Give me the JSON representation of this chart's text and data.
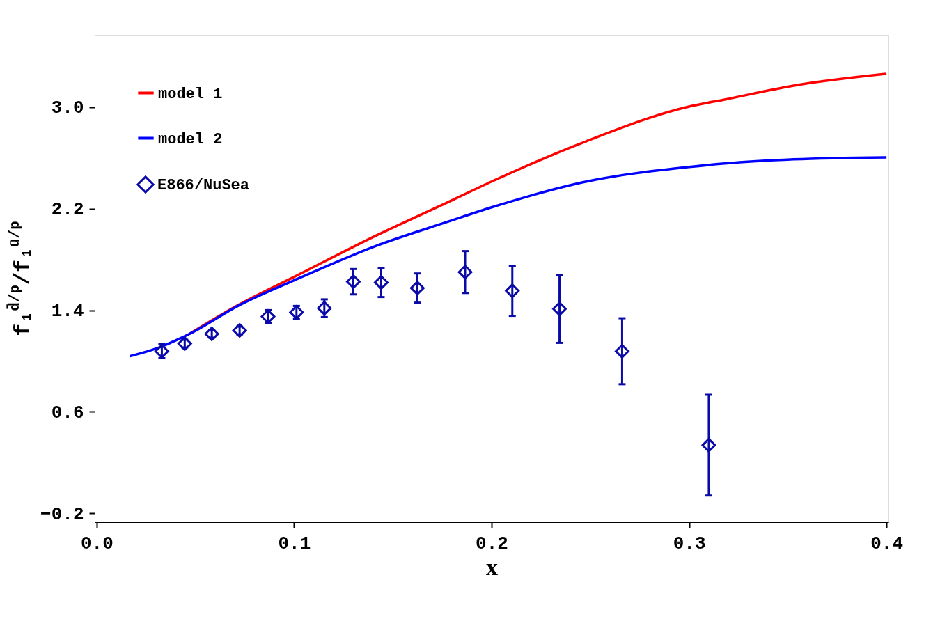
{
  "chart_data": {
    "type": "line",
    "xlabel": "x",
    "ylabel": "f₁$^{d̄/p}$/f₁$^{ū/p}$",
    "xlim": [
      -0.001,
      0.401
    ],
    "ylim": [
      -0.27,
      3.57
    ],
    "xticks": [
      {
        "value": 0.0,
        "label": "0.0"
      },
      0.1,
      0.2,
      0.3,
      0.4
    ],
    "yticks": [
      -0.2,
      0.6,
      1.4,
      2.2,
      {
        "value": 3.0,
        "label": "3.0"
      }
    ],
    "grid": false,
    "legend": "top left",
    "series": [
      {
        "name": "model 1",
        "color": "#ff0000",
        "line_style": "solid",
        "marker": "none",
        "x": [
          0.047,
          0.072,
          0.1,
          0.142,
          0.1775,
          0.2,
          0.248,
          0.3,
          0.318,
          0.353,
          0.4
        ],
        "values": [
          1.214,
          1.444,
          1.663,
          1.992,
          2.249,
          2.414,
          2.732,
          3.005,
          3.06,
          3.17,
          3.263
        ]
      },
      {
        "name": "model 2",
        "color": "#0000ff",
        "line_style": "solid",
        "marker": "none",
        "x": [
          0.0169,
          0.033,
          0.047,
          0.072,
          0.1,
          0.142,
          0.1775,
          0.2,
          0.248,
          0.3,
          0.318,
          0.353,
          0.4
        ],
        "values": [
          1.038,
          1.115,
          1.214,
          1.438,
          1.636,
          1.91,
          2.096,
          2.211,
          2.414,
          2.529,
          2.556,
          2.589,
          2.605
        ]
      },
      {
        "name": "E866/NuSea",
        "type": "scatter",
        "color": "#0a0aa8",
        "marker": "diamond",
        "x": [
          0.033,
          0.0446,
          0.0583,
          0.0724,
          0.0868,
          0.1012,
          0.1153,
          0.13,
          0.1441,
          0.1624,
          0.1866,
          0.2105,
          0.2344,
          0.2661,
          0.31
        ],
        "values": [
          1.077,
          1.137,
          1.214,
          1.241,
          1.351,
          1.384,
          1.416,
          1.625,
          1.619,
          1.575,
          1.701,
          1.553,
          1.411,
          1.077,
          0.337
        ],
        "errors": [
          0.055,
          0.03,
          0.03,
          0.03,
          0.05,
          0.05,
          0.07,
          0.1,
          0.115,
          0.115,
          0.165,
          0.197,
          0.268,
          0.26,
          0.397
        ]
      }
    ]
  }
}
